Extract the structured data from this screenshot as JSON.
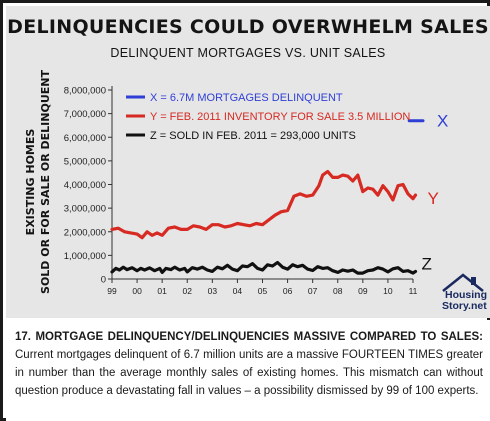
{
  "title": "DELINQUENCIES COULD OVERWHELM SALES",
  "subtitle": "DELINQUENT MORTGAGES VS. UNIT SALES",
  "logo": {
    "line1": "Housing",
    "line2": "Story.net"
  },
  "caption": {
    "heading": "17. MORTGAGE DELINQUENCY/DELINQUENCIES MASSIVE COMPARED TO SALES:",
    "body": " Current mortgages delinquent of 6.7 million units are a massive FOURTEEN TIMES greater in number than the average monthly sales of existing homes. This mismatch can without question produce a devastating fall in values – a possibility dismissed by 99 of 100 experts."
  },
  "chart_data": {
    "type": "line",
    "ylabel_line1": "EXISTING HOMES",
    "ylabel_line2": "SOLD OR FOR SALE OR DELINQUENT",
    "ylim": [
      0,
      8000000
    ],
    "yticks": [
      "0",
      "1,000,000",
      "2,000,000",
      "3,000,000",
      "4,000,000",
      "5,000,000",
      "6,000,000",
      "7,000,000",
      "8,000,000"
    ],
    "xlim": [
      1999,
      2011
    ],
    "xticks": [
      "99",
      "00",
      "01",
      "02",
      "03",
      "04",
      "05",
      "06",
      "07",
      "08",
      "09",
      "10",
      "11"
    ],
    "grid": false,
    "legend_position": "top-left",
    "legend": [
      {
        "label": "X = 6.7M MORTGAGES DELINQUENT",
        "color": "#2f3fd6"
      },
      {
        "label": "Y = FEB. 2011 INVENTORY FOR SALE 3.5 MILLION",
        "color": "#d62a22"
      },
      {
        "label": "Z = SOLD IN FEB. 2011 = 293,000 UNITS",
        "color": "#111111"
      }
    ],
    "series": [
      {
        "name": "X",
        "color": "#2f3fd6",
        "points": [
          [
            2010.85,
            6700000
          ],
          [
            2011.4,
            6700000
          ]
        ]
      },
      {
        "name": "Y",
        "color": "#d62a22",
        "points": [
          [
            1999.0,
            2100000
          ],
          [
            1999.25,
            2150000
          ],
          [
            1999.5,
            2000000
          ],
          [
            1999.75,
            1950000
          ],
          [
            2000.0,
            1900000
          ],
          [
            2000.2,
            1750000
          ],
          [
            2000.4,
            2000000
          ],
          [
            2000.6,
            1850000
          ],
          [
            2000.8,
            1950000
          ],
          [
            2001.0,
            1850000
          ],
          [
            2001.25,
            2150000
          ],
          [
            2001.5,
            2200000
          ],
          [
            2001.75,
            2100000
          ],
          [
            2002.0,
            2100000
          ],
          [
            2002.25,
            2250000
          ],
          [
            2002.5,
            2200000
          ],
          [
            2002.75,
            2100000
          ],
          [
            2003.0,
            2300000
          ],
          [
            2003.25,
            2300000
          ],
          [
            2003.5,
            2200000
          ],
          [
            2003.75,
            2250000
          ],
          [
            2004.0,
            2350000
          ],
          [
            2004.25,
            2300000
          ],
          [
            2004.5,
            2250000
          ],
          [
            2004.75,
            2350000
          ],
          [
            2005.0,
            2300000
          ],
          [
            2005.25,
            2500000
          ],
          [
            2005.5,
            2700000
          ],
          [
            2005.75,
            2850000
          ],
          [
            2006.0,
            2900000
          ],
          [
            2006.25,
            3500000
          ],
          [
            2006.5,
            3600000
          ],
          [
            2006.75,
            3500000
          ],
          [
            2007.0,
            3550000
          ],
          [
            2007.25,
            3950000
          ],
          [
            2007.4,
            4400000
          ],
          [
            2007.6,
            4550000
          ],
          [
            2007.8,
            4300000
          ],
          [
            2008.0,
            4300000
          ],
          [
            2008.2,
            4400000
          ],
          [
            2008.4,
            4350000
          ],
          [
            2008.6,
            4150000
          ],
          [
            2008.8,
            4400000
          ],
          [
            2009.0,
            3700000
          ],
          [
            2009.2,
            3850000
          ],
          [
            2009.4,
            3800000
          ],
          [
            2009.6,
            3550000
          ],
          [
            2009.8,
            3950000
          ],
          [
            2010.0,
            3700000
          ],
          [
            2010.2,
            3350000
          ],
          [
            2010.4,
            3950000
          ],
          [
            2010.6,
            4000000
          ],
          [
            2010.8,
            3600000
          ],
          [
            2011.0,
            3400000
          ],
          [
            2011.1,
            3550000
          ]
        ]
      },
      {
        "name": "Z",
        "color": "#111111",
        "points": [
          [
            1999.0,
            300000
          ],
          [
            1999.15,
            450000
          ],
          [
            1999.3,
            380000
          ],
          [
            1999.45,
            500000
          ],
          [
            1999.6,
            400000
          ],
          [
            1999.8,
            480000
          ],
          [
            2000.0,
            350000
          ],
          [
            2000.15,
            450000
          ],
          [
            2000.3,
            380000
          ],
          [
            2000.5,
            470000
          ],
          [
            2000.7,
            350000
          ],
          [
            2000.9,
            450000
          ],
          [
            2001.0,
            280000
          ],
          [
            2001.15,
            450000
          ],
          [
            2001.35,
            400000
          ],
          [
            2001.5,
            500000
          ],
          [
            2001.7,
            380000
          ],
          [
            2001.9,
            450000
          ],
          [
            2002.0,
            300000
          ],
          [
            2002.2,
            480000
          ],
          [
            2002.4,
            420000
          ],
          [
            2002.6,
            500000
          ],
          [
            2002.8,
            380000
          ],
          [
            2003.0,
            320000
          ],
          [
            2003.2,
            500000
          ],
          [
            2003.4,
            430000
          ],
          [
            2003.6,
            580000
          ],
          [
            2003.8,
            420000
          ],
          [
            2004.0,
            350000
          ],
          [
            2004.2,
            550000
          ],
          [
            2004.4,
            520000
          ],
          [
            2004.6,
            650000
          ],
          [
            2004.8,
            450000
          ],
          [
            2005.0,
            380000
          ],
          [
            2005.2,
            600000
          ],
          [
            2005.4,
            550000
          ],
          [
            2005.6,
            700000
          ],
          [
            2005.8,
            500000
          ],
          [
            2006.0,
            420000
          ],
          [
            2006.2,
            600000
          ],
          [
            2006.4,
            520000
          ],
          [
            2006.6,
            580000
          ],
          [
            2006.8,
            420000
          ],
          [
            2007.0,
            360000
          ],
          [
            2007.2,
            520000
          ],
          [
            2007.4,
            450000
          ],
          [
            2007.6,
            480000
          ],
          [
            2007.8,
            350000
          ],
          [
            2008.0,
            280000
          ],
          [
            2008.2,
            380000
          ],
          [
            2008.4,
            330000
          ],
          [
            2008.6,
            380000
          ],
          [
            2008.8,
            250000
          ],
          [
            2009.0,
            250000
          ],
          [
            2009.2,
            350000
          ],
          [
            2009.4,
            380000
          ],
          [
            2009.6,
            480000
          ],
          [
            2009.8,
            420000
          ],
          [
            2010.0,
            300000
          ],
          [
            2010.2,
            430000
          ],
          [
            2010.4,
            480000
          ],
          [
            2010.6,
            320000
          ],
          [
            2010.8,
            350000
          ],
          [
            2011.0,
            250000
          ],
          [
            2011.1,
            320000
          ]
        ]
      }
    ]
  }
}
